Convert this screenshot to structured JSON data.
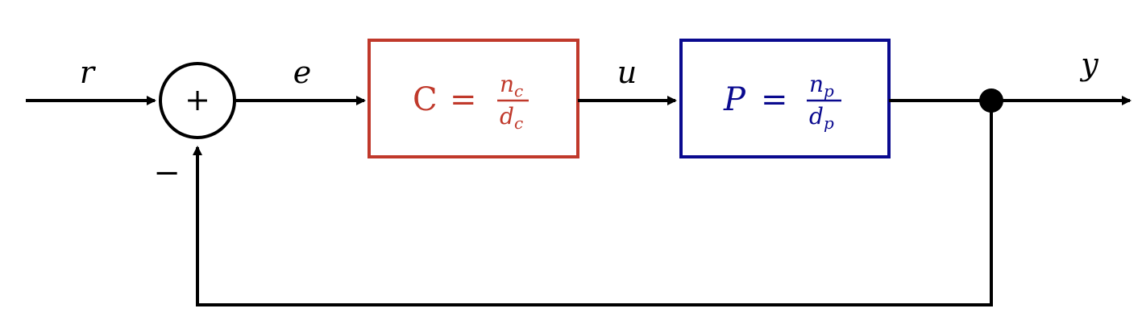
{
  "diagram": {
    "signals": {
      "r": "r",
      "e": "e",
      "u": "u",
      "y": "y"
    },
    "summing_junction": {
      "symbol": "+",
      "negative_sign": "−"
    },
    "controller": {
      "lhs": "C",
      "equals": "=",
      "numerator": "n",
      "numerator_sub": "c",
      "denominator": "d",
      "denominator_sub": "c",
      "color": "#C0392B"
    },
    "plant": {
      "lhs": "P",
      "equals": "=",
      "numerator": "n",
      "numerator_sub": "p",
      "denominator": "d",
      "denominator_sub": "p",
      "color": "#0A0A8F"
    },
    "line_color": "#000000"
  }
}
